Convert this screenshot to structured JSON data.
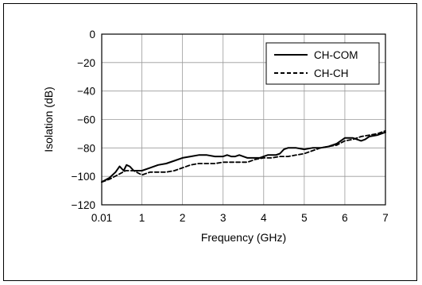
{
  "chart_data": {
    "type": "line",
    "xlabel": "Frequency (GHz)",
    "ylabel": "Isolation (dB)",
    "xlim": [
      0.01,
      7
    ],
    "ylim": [
      -120,
      0
    ],
    "x_ticks": [
      0.01,
      1,
      2,
      3,
      4,
      5,
      6,
      7
    ],
    "x_tick_labels": [
      "0.01",
      "1",
      "2",
      "3",
      "4",
      "5",
      "6",
      "7"
    ],
    "y_ticks": [
      0,
      -20,
      -40,
      -60,
      -80,
      -100,
      -120
    ],
    "y_tick_labels": [
      "0",
      "−20",
      "−40",
      "−60",
      "−80",
      "−100",
      "−120"
    ],
    "grid": true,
    "legend_position": "top-right",
    "series": [
      {
        "name": "CH-COM",
        "style": "solid",
        "color": "#000000",
        "x": [
          0.01,
          0.2,
          0.35,
          0.45,
          0.55,
          0.62,
          0.7,
          0.8,
          0.9,
          1.0,
          1.2,
          1.4,
          1.6,
          1.8,
          2.0,
          2.2,
          2.4,
          2.6,
          2.8,
          3.0,
          3.1,
          3.2,
          3.3,
          3.4,
          3.6,
          3.8,
          3.9,
          4.0,
          4.1,
          4.2,
          4.3,
          4.4,
          4.5,
          4.6,
          4.8,
          5.0,
          5.2,
          5.4,
          5.6,
          5.8,
          6.0,
          6.2,
          6.4,
          6.5,
          6.6,
          6.8,
          7.0
        ],
        "y": [
          -104,
          -101,
          -97,
          -93,
          -96,
          -92,
          -93,
          -96,
          -96,
          -96,
          -94,
          -92,
          -91,
          -89,
          -87,
          -86,
          -85,
          -85,
          -86,
          -86,
          -85,
          -86,
          -86,
          -85,
          -87,
          -87,
          -87,
          -86,
          -85,
          -85,
          -85,
          -84,
          -81,
          -80,
          -80,
          -81,
          -80,
          -80,
          -79,
          -77,
          -73,
          -73,
          -75,
          -74,
          -72,
          -71,
          -69
        ]
      },
      {
        "name": "CH-CH",
        "style": "dashed",
        "color": "#000000",
        "x": [
          0.01,
          0.2,
          0.4,
          0.6,
          0.8,
          1.0,
          1.2,
          1.4,
          1.6,
          1.8,
          2.0,
          2.2,
          2.4,
          2.6,
          2.8,
          3.0,
          3.2,
          3.4,
          3.6,
          3.8,
          4.0,
          4.2,
          4.4,
          4.6,
          4.8,
          5.0,
          5.2,
          5.4,
          5.6,
          5.8,
          6.0,
          6.2,
          6.4,
          6.6,
          6.8,
          7.0
        ],
        "y": [
          -104,
          -102,
          -99,
          -96,
          -96,
          -99,
          -97,
          -97,
          -97,
          -96,
          -94,
          -92,
          -91,
          -91,
          -91,
          -90,
          -90,
          -90,
          -90,
          -88,
          -87,
          -87,
          -86,
          -86,
          -85,
          -84,
          -82,
          -80,
          -79,
          -78,
          -75,
          -74,
          -72,
          -71,
          -70,
          -68
        ]
      }
    ]
  }
}
